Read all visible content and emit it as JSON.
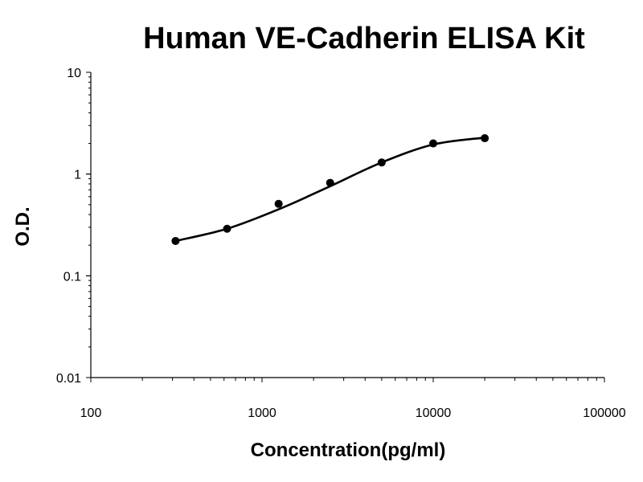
{
  "chart_data": {
    "type": "scatter",
    "title": "Human VE-Cadherin ELISA Kit",
    "xlabel": "Concentration(pg/ml)",
    "ylabel": "O.D.",
    "xscale": "log",
    "yscale": "log",
    "xlim": [
      100,
      100000
    ],
    "ylim": [
      0.01,
      10
    ],
    "xticks": [
      "100",
      "1000",
      "10000",
      "100000"
    ],
    "yticks": [
      "0.01",
      "0.1",
      "1",
      "10"
    ],
    "grid": false,
    "legend": "none",
    "series": [
      {
        "type": "scatter",
        "x": [
          312.5,
          625,
          1250,
          2500,
          5000,
          10000,
          20000
        ],
        "y": [
          0.22,
          0.29,
          0.51,
          0.82,
          1.3,
          2.0,
          2.25
        ]
      },
      {
        "type": "line",
        "fit": "smooth curve",
        "x": [
          312.5,
          625,
          1250,
          2500,
          5000,
          10000,
          20000
        ],
        "y": [
          0.22,
          0.29,
          0.45,
          0.76,
          1.3,
          1.95,
          2.28
        ]
      }
    ],
    "colors": {
      "points": "#000000",
      "curve": "#000000",
      "axis": "#000000"
    }
  }
}
